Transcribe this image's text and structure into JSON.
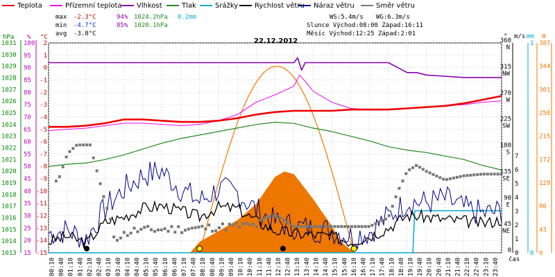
{
  "colors": {
    "teplota": "#ee0000",
    "prizemni": "#ee00ee",
    "vlhkost": "#8800aa",
    "tlak": "#228822",
    "srazky": "#00aacc",
    "rychlost": "#000000",
    "naraz": "#000088",
    "smer": "#777777",
    "slunce": "#ee7700",
    "osa_vlhkost": "#bb00bb",
    "osa_tlak": "#008800",
    "osa_teplota": "#cc0000"
  },
  "legend": [
    {
      "label": "Teplota",
      "key": "teplota"
    },
    {
      "label": "Přízemní teplota",
      "key": "prizemni"
    },
    {
      "label": "Vlhkost",
      "key": "vlhkost"
    },
    {
      "label": "Tlak",
      "key": "tlak"
    },
    {
      "label": "Srážky",
      "key": "srazky"
    },
    {
      "label": "Rychlost větru",
      "key": "rychlost"
    },
    {
      "label": "Náraz větru",
      "key": "naraz"
    },
    {
      "label": "Směr větru",
      "key": "smer"
    }
  ],
  "stats": {
    "max": {
      "label": "max",
      "temp": "-2.3°C",
      "hum": "94%",
      "press": "1024.2hPa",
      "rain": "0.2mm"
    },
    "min": {
      "label": "min",
      "temp": "-4.7°C",
      "hum": "85%",
      "press": "1020.1hPa"
    },
    "avg": {
      "label": "avg",
      "temp": "-3.8°C"
    }
  },
  "info": {
    "ws": "WS:5.4m/s",
    "wg": "WG:6.3m/s",
    "slunce": "Slunce Východ:08:00  Západ:16:11",
    "mesic": "Měsíc  Východ:12:25  Západ:2:01"
  },
  "date": "22.12.2012",
  "axes": {
    "left_units": [
      "hPa",
      "%",
      "°C"
    ],
    "right_units": [
      "°",
      "m/s",
      "mm",
      "W"
    ],
    "x_label": "čas",
    "hpa": [
      "1031",
      "1030",
      "1029",
      "1028",
      "1027",
      "1026",
      "1025",
      "1024",
      "1023",
      "1022",
      "1021",
      "1020",
      "1019",
      "1018",
      "1017",
      "1016",
      "1015",
      "1014",
      "1013"
    ],
    "pct": [
      "100",
      "95",
      "90",
      "85",
      "80",
      "75",
      "70",
      "65",
      "60",
      "55",
      "50",
      "45",
      "40",
      "35",
      "30",
      "25",
      "20",
      "15"
    ],
    "degc": [
      "2",
      "1",
      "0",
      "-1",
      "-2",
      "-3",
      "-4",
      "-5",
      "-6",
      "-7",
      "-8",
      "-9",
      "-10",
      "-11",
      "-12",
      "-13",
      "-14",
      "-15"
    ],
    "dir": [
      {
        "v": "360",
        "d": "N"
      },
      {
        "v": "315",
        "d": "NW"
      },
      {
        "v": "270",
        "d": "W"
      },
      {
        "v": "225",
        "d": "SW"
      },
      {
        "v": "180",
        "d": "S"
      },
      {
        "v": "135",
        "d": "SE"
      },
      {
        "v": "90",
        "d": "E"
      },
      {
        "v": "45",
        "d": "NE"
      },
      {
        "v": "0",
        "d": ""
      }
    ],
    "ms": [
      "7",
      "6",
      "5",
      "4",
      "3",
      "2",
      "1",
      "0"
    ],
    "mm": [
      "1",
      "0"
    ],
    "w": [
      "387",
      "344",
      "301",
      "258",
      "215",
      "172",
      "129",
      "86",
      "43",
      "0"
    ],
    "times": [
      "00:10",
      "00:40",
      "01:10",
      "01:40",
      "02:10",
      "02:40",
      "03:10",
      "03:40",
      "04:10",
      "04:40",
      "05:10",
      "05:40",
      "06:10",
      "06:40",
      "07:10",
      "07:40",
      "08:10",
      "08:40",
      "09:10",
      "09:40",
      "10:10",
      "10:40",
      "11:10",
      "11:40",
      "12:10",
      "12:40",
      "13:10",
      "13:40",
      "14:10",
      "14:40",
      "15:10",
      "15:40",
      "16:10",
      "16:40",
      "17:10",
      "17:40",
      "18:10",
      "18:40",
      "19:10",
      "19:40",
      "20:10",
      "20:40",
      "21:10",
      "21:40",
      "22:10",
      "22:40",
      "23:10",
      "23:40"
    ]
  },
  "chart_data": {
    "type": "line",
    "title": "22.12.2012",
    "x_unit": "hours",
    "xlim": [
      0,
      24
    ],
    "series": [
      {
        "name": "Teplota",
        "unit": "°C",
        "points": [
          [
            0,
            -4.8
          ],
          [
            1,
            -4.8
          ],
          [
            2,
            -4.7
          ],
          [
            3,
            -4.5
          ],
          [
            4,
            -4.2
          ],
          [
            5,
            -4.2
          ],
          [
            6,
            -4.3
          ],
          [
            7,
            -4.4
          ],
          [
            8,
            -4.4
          ],
          [
            9,
            -4.3
          ],
          [
            10,
            -4.1
          ],
          [
            11,
            -3.8
          ],
          [
            12,
            -3.6
          ],
          [
            13,
            -3.5
          ],
          [
            14,
            -3.5
          ],
          [
            15,
            -3.5
          ],
          [
            16,
            -3.4
          ],
          [
            17,
            -3.4
          ],
          [
            18,
            -3.4
          ],
          [
            19,
            -3.3
          ],
          [
            20,
            -3.2
          ],
          [
            21,
            -3.1
          ],
          [
            22,
            -2.9
          ],
          [
            23,
            -2.6
          ],
          [
            24,
            -2.3
          ]
        ]
      },
      {
        "name": "Přízemní teplota",
        "unit": "°C",
        "points": [
          [
            0,
            -5.1
          ],
          [
            1,
            -5.0
          ],
          [
            2,
            -4.9
          ],
          [
            3,
            -4.7
          ],
          [
            4,
            -4.5
          ],
          [
            5,
            -4.5
          ],
          [
            6,
            -4.6
          ],
          [
            7,
            -4.7
          ],
          [
            8,
            -4.6
          ],
          [
            9,
            -4.3
          ],
          [
            10,
            -3.8
          ],
          [
            11,
            -2.8
          ],
          [
            12,
            -2.2
          ],
          [
            13,
            -1.5
          ],
          [
            13.3,
            -0.6
          ],
          [
            13.7,
            -1.3
          ],
          [
            14,
            -1.9
          ],
          [
            15,
            -2.8
          ],
          [
            16,
            -3.3
          ],
          [
            17,
            -3.4
          ],
          [
            18,
            -3.4
          ],
          [
            19,
            -3.3
          ],
          [
            20,
            -3.2
          ],
          [
            21,
            -3.1
          ],
          [
            22,
            -3.0
          ],
          [
            23,
            -2.8
          ],
          [
            24,
            -2.7
          ]
        ]
      },
      {
        "name": "Vlhkost",
        "unit": "%",
        "points": [
          [
            0,
            92
          ],
          [
            4,
            92
          ],
          [
            8,
            92
          ],
          [
            12,
            92
          ],
          [
            13,
            92
          ],
          [
            13.2,
            94
          ],
          [
            13.4,
            89
          ],
          [
            13.6,
            92
          ],
          [
            16,
            92
          ],
          [
            17,
            92
          ],
          [
            18,
            92
          ],
          [
            18.5,
            90
          ],
          [
            19,
            88
          ],
          [
            19.5,
            88
          ],
          [
            20,
            87
          ],
          [
            22,
            86
          ],
          [
            24,
            86
          ]
        ]
      },
      {
        "name": "Tlak",
        "unit": "hPa",
        "points": [
          [
            0,
            1020.4
          ],
          [
            1,
            1020.6
          ],
          [
            2,
            1020.7
          ],
          [
            3,
            1021.0
          ],
          [
            4,
            1021.4
          ],
          [
            5,
            1021.9
          ],
          [
            6,
            1022.4
          ],
          [
            7,
            1022.8
          ],
          [
            8,
            1023.1
          ],
          [
            9,
            1023.4
          ],
          [
            10,
            1023.7
          ],
          [
            11,
            1024.0
          ],
          [
            12,
            1024.2
          ],
          [
            13,
            1024.1
          ],
          [
            14,
            1023.7
          ],
          [
            15,
            1023.4
          ],
          [
            16,
            1023.0
          ],
          [
            17,
            1022.6
          ],
          [
            18,
            1022.1
          ],
          [
            19,
            1021.8
          ],
          [
            20,
            1021.6
          ],
          [
            21,
            1021.3
          ],
          [
            22,
            1021.0
          ],
          [
            23,
            1020.5
          ],
          [
            24,
            1020.1
          ]
        ]
      },
      {
        "name": "Srážky",
        "unit": "mm",
        "points": [
          [
            0,
            0
          ],
          [
            19.3,
            0
          ],
          [
            19.4,
            0.2
          ],
          [
            24,
            0.2
          ]
        ]
      },
      {
        "name": "Rychlost větru",
        "unit": "m/s",
        "points": [
          [
            0,
            0.8
          ],
          [
            1,
            1.2
          ],
          [
            2,
            0.7
          ],
          [
            3,
            2.2
          ],
          [
            4,
            2.6
          ],
          [
            5,
            3.2
          ],
          [
            6,
            3.4
          ],
          [
            7,
            3.0
          ],
          [
            8,
            2.6
          ],
          [
            9,
            3.3
          ],
          [
            10,
            3.2
          ],
          [
            11,
            2.3
          ],
          [
            12,
            1.6
          ],
          [
            13,
            1.4
          ],
          [
            14,
            1.3
          ],
          [
            15,
            1.2
          ],
          [
            16,
            0.8
          ],
          [
            17,
            1.2
          ],
          [
            18,
            1.8
          ],
          [
            19,
            2.7
          ],
          [
            20,
            2.6
          ],
          [
            21,
            2.4
          ],
          [
            22,
            2.3
          ],
          [
            23,
            2.1
          ],
          [
            24,
            2.4
          ]
        ]
      },
      {
        "name": "Náraz větru",
        "unit": "m/s",
        "points": [
          [
            0,
            1.4
          ],
          [
            1,
            1.6
          ],
          [
            2,
            1.0
          ],
          [
            3,
            3.2
          ],
          [
            4,
            4.6
          ],
          [
            5,
            5.6
          ],
          [
            6,
            5.9
          ],
          [
            7,
            4.6
          ],
          [
            8,
            3.7
          ],
          [
            9,
            4.6
          ],
          [
            10,
            4.3
          ],
          [
            11,
            3.1
          ],
          [
            12,
            2.2
          ],
          [
            13,
            1.9
          ],
          [
            14,
            1.7
          ],
          [
            15,
            1.6
          ],
          [
            16,
            1.2
          ],
          [
            17,
            1.5
          ],
          [
            18,
            2.6
          ],
          [
            19,
            3.7
          ],
          [
            20,
            3.6
          ],
          [
            21,
            3.9
          ],
          [
            22,
            3.2
          ],
          [
            23,
            2.8
          ],
          [
            24,
            3.0
          ]
        ]
      },
      {
        "name": "Směr větru",
        "unit": "°",
        "points": [
          [
            0.5,
            123
          ],
          [
            1,
            170
          ],
          [
            1.5,
            185
          ],
          [
            2.2,
            185
          ],
          [
            3.5,
            25
          ],
          [
            4.5,
            38
          ],
          [
            6,
            40
          ],
          [
            8,
            42
          ],
          [
            9.5,
            45
          ],
          [
            11,
            47
          ],
          [
            12,
            65
          ],
          [
            13,
            45
          ],
          [
            15,
            45
          ],
          [
            16.5,
            45
          ],
          [
            17,
            45
          ],
          [
            18,
            60
          ],
          [
            18.5,
            105
          ],
          [
            19,
            140
          ],
          [
            19.5,
            150
          ],
          [
            20,
            140
          ],
          [
            21,
            125
          ],
          [
            22,
            132
          ],
          [
            23,
            135
          ],
          [
            24,
            135
          ]
        ]
      },
      {
        "name": "Slunce",
        "unit": "W",
        "points": [
          [
            7.5,
            0
          ],
          [
            8,
            20
          ],
          [
            9,
            40
          ],
          [
            10,
            60
          ],
          [
            11,
            90
          ],
          [
            12,
            140
          ],
          [
            12.5,
            150
          ],
          [
            13,
            145
          ],
          [
            14,
            100
          ],
          [
            15,
            50
          ],
          [
            15.5,
            20
          ],
          [
            16.2,
            0
          ]
        ]
      }
    ],
    "sun_path": {
      "sunrise": 8.0,
      "sunset": 16.18,
      "peak_w": 344
    },
    "markers": [
      {
        "name": "moonset",
        "x": 2.02
      },
      {
        "name": "sunrise",
        "x": 8.0
      },
      {
        "name": "moonrise",
        "x": 12.42
      },
      {
        "name": "sunset",
        "x": 16.18
      }
    ],
    "ylim": {
      "degc": [
        -15,
        2
      ],
      "pct": [
        15,
        100
      ],
      "hpa": [
        1013,
        1031
      ],
      "dir": [
        0,
        360
      ],
      "ms": [
        0,
        7
      ],
      "mm": [
        0,
        1
      ],
      "w": [
        0,
        387
      ]
    },
    "grid": true
  }
}
